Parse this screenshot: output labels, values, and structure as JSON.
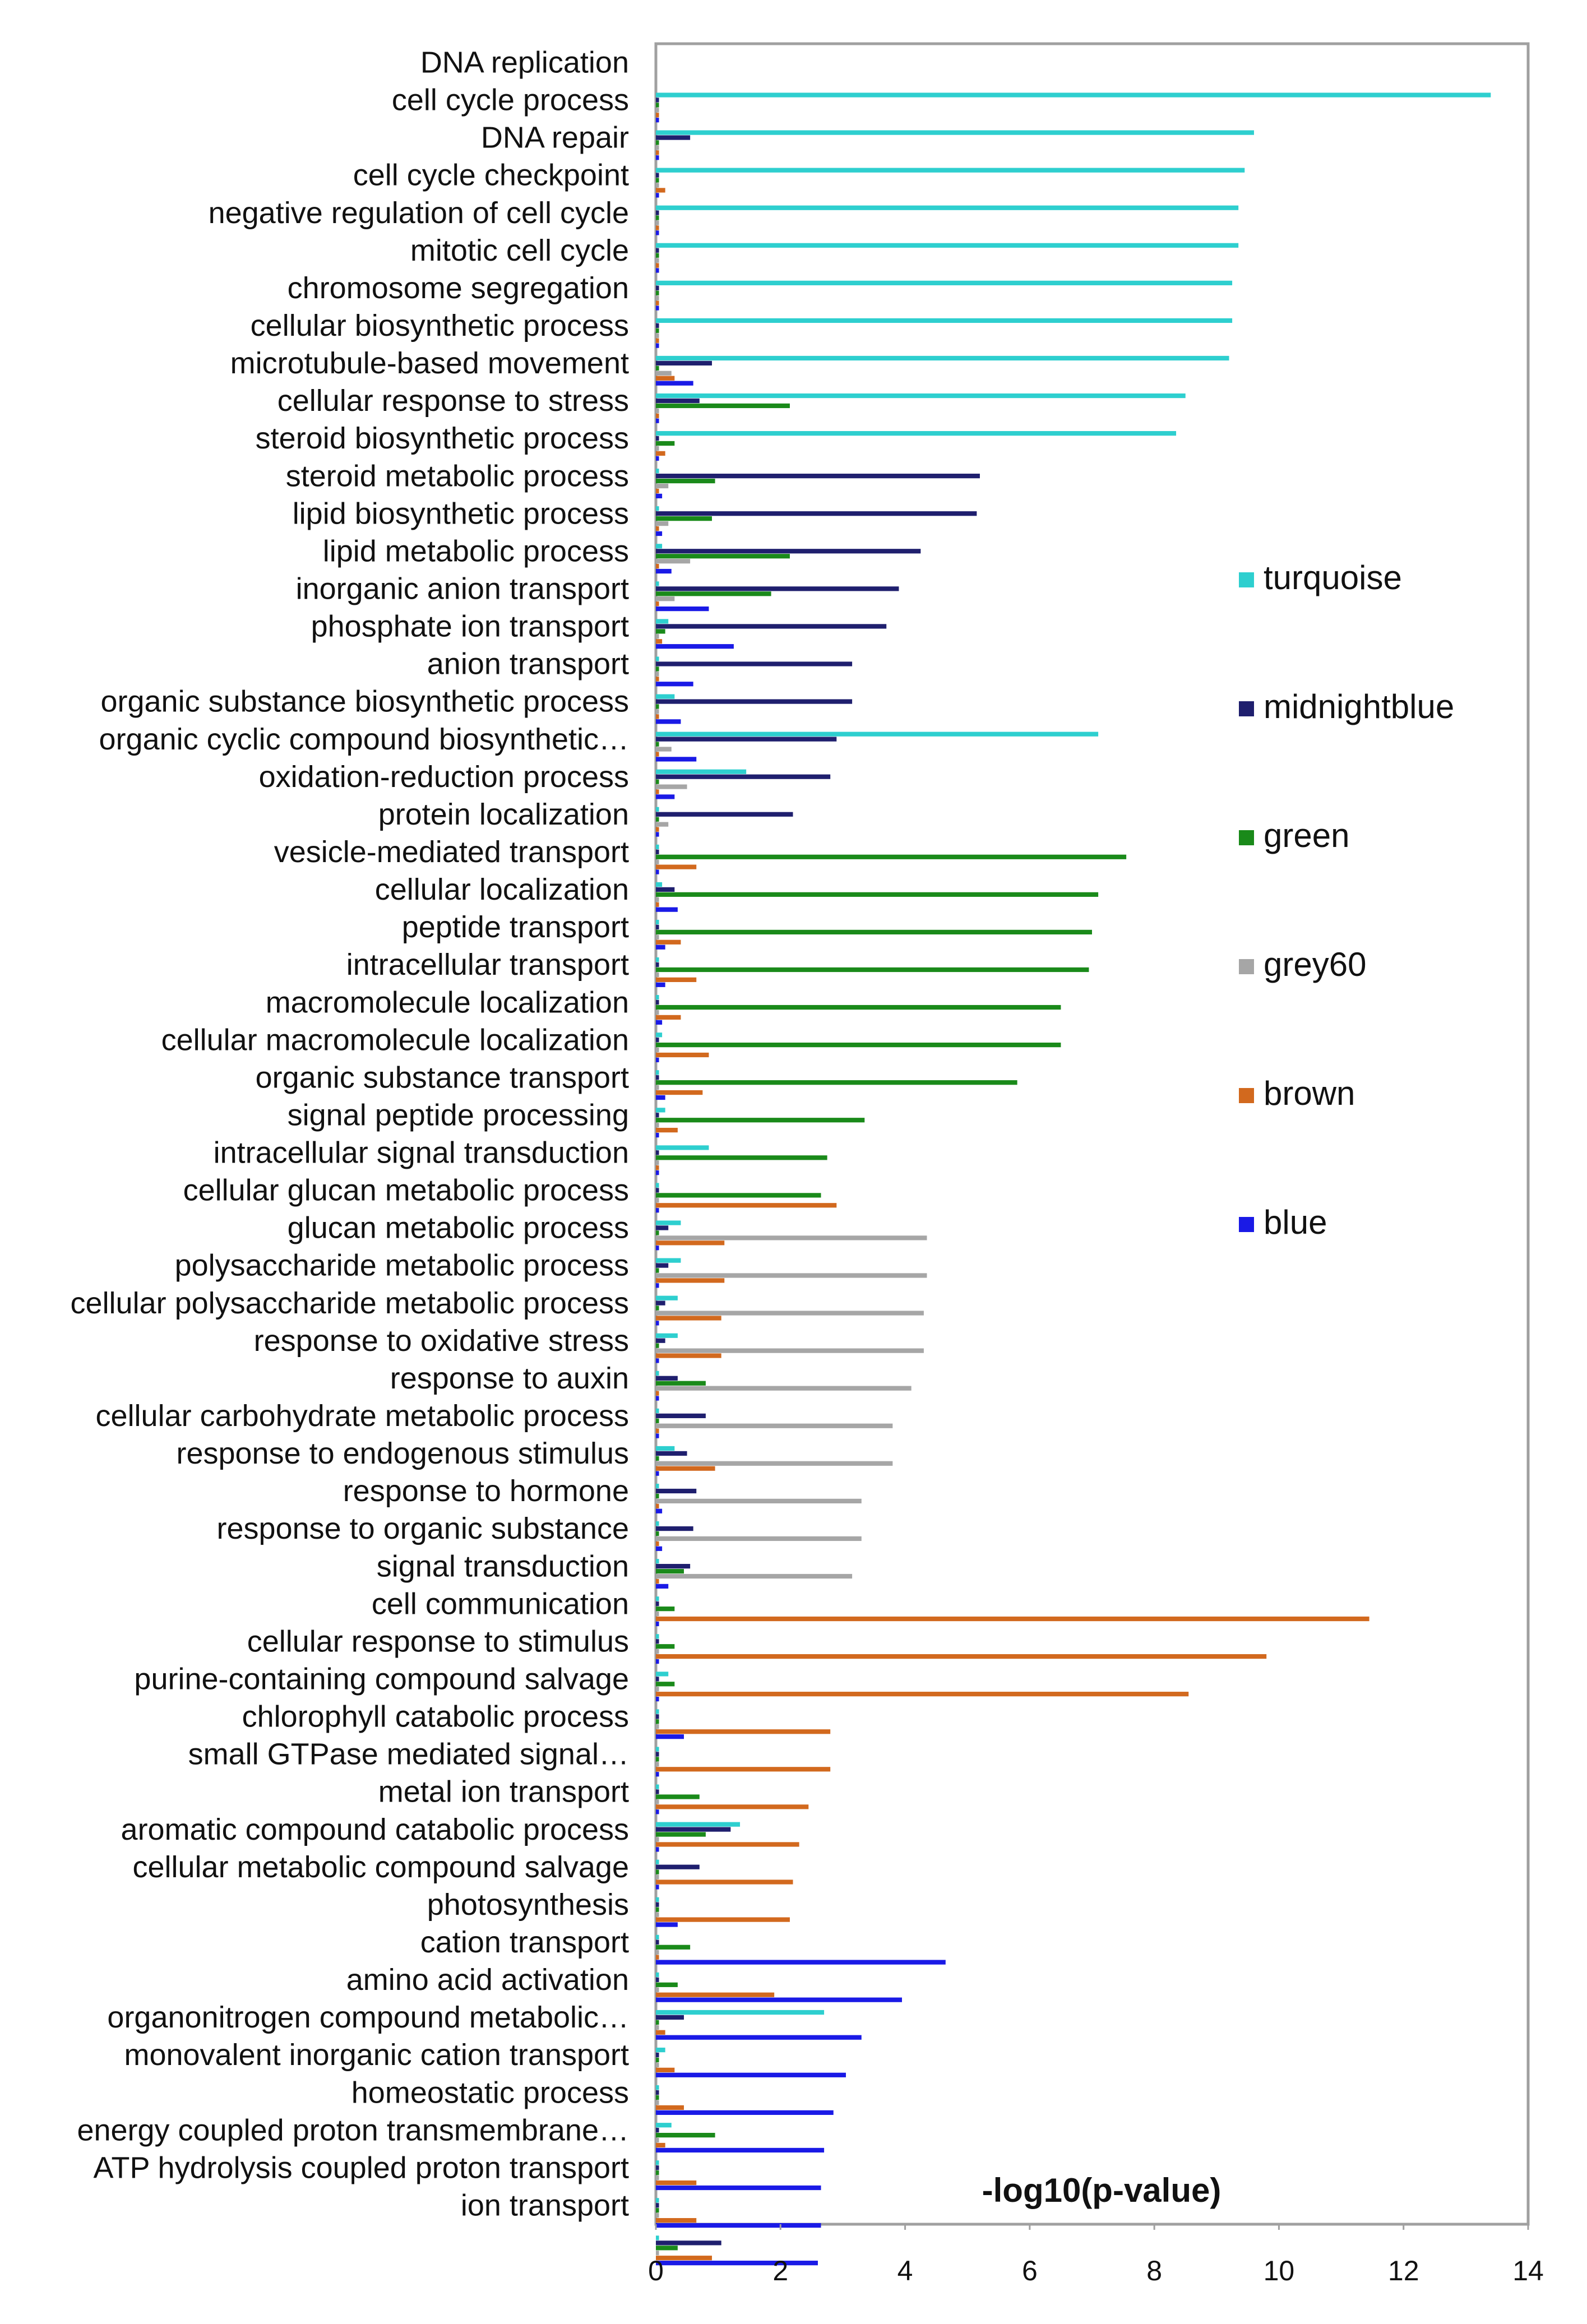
{
  "chart_data": {
    "type": "bar",
    "orientation": "horizontal",
    "xlabel": "-log10(p-value)",
    "xlim": [
      0,
      14
    ],
    "x_ticks": [
      0,
      2,
      4,
      6,
      8,
      10,
      12,
      14
    ],
    "x_tick_labels": [
      "0",
      "2",
      "4",
      "6",
      "8",
      "10",
      "12",
      "14"
    ],
    "grid": false,
    "legend_position": "right",
    "categories": [
      "DNA replication",
      "cell cycle process",
      "DNA repair",
      "cell cycle checkpoint",
      "negative regulation of cell cycle",
      "mitotic cell cycle",
      "chromosome segregation",
      "cellular biosynthetic process",
      "microtubule-based movement",
      "cellular response to stress",
      "steroid biosynthetic process",
      "steroid metabolic process",
      "lipid biosynthetic process",
      "lipid metabolic process",
      "inorganic anion transport",
      "phosphate ion transport",
      "anion transport",
      "organic substance biosynthetic process",
      "organic cyclic compound biosynthetic…",
      "oxidation-reduction process",
      "protein localization",
      "vesicle-mediated transport",
      "cellular localization",
      "peptide transport",
      "intracellular transport",
      "macromolecule localization",
      "cellular macromolecule localization",
      "organic substance transport",
      "signal peptide processing",
      "intracellular signal transduction",
      "cellular glucan metabolic process",
      "glucan metabolic process",
      "polysaccharide metabolic process",
      "cellular polysaccharide metabolic process",
      "response to oxidative stress",
      "response to auxin",
      "cellular carbohydrate metabolic process",
      "response to endogenous stimulus",
      "response to hormone",
      "response to organic substance",
      "signal transduction",
      "cell communication",
      "cellular response to stimulus",
      "purine-containing compound salvage",
      "chlorophyll catabolic process",
      "small GTPase mediated signal…",
      "metal ion transport",
      "aromatic compound catabolic process",
      "cellular metabolic compound salvage",
      "photosynthesis",
      "cation transport",
      "amino acid activation",
      "organonitrogen compound metabolic…",
      "monovalent inorganic cation transport",
      "homeostatic process",
      "energy coupled proton transmembrane…",
      "ATP hydrolysis coupled proton transport",
      "ion transport"
    ],
    "series": [
      {
        "name": "turquoise",
        "color": "#2ecfcf",
        "values": [
          13.4,
          9.6,
          9.45,
          9.35,
          9.35,
          9.25,
          9.25,
          9.2,
          8.5,
          8.35,
          0.05,
          0.05,
          0.1,
          0.05,
          0.2,
          0.05,
          0.3,
          7.1,
          1.45,
          0.05,
          0.05,
          0.1,
          0.05,
          0.05,
          0.05,
          0.1,
          0.05,
          0.15,
          0.85,
          0.05,
          0.4,
          0.4,
          0.35,
          0.35,
          0.05,
          0.05,
          0.3,
          0.05,
          0.05,
          0.05,
          0.05,
          0.05,
          0.2,
          0.05,
          0.05,
          0.05,
          1.35,
          0.05,
          0.05,
          0.05,
          0.05,
          2.7,
          0.15,
          0.05,
          0.25,
          0.05,
          0.05,
          0.05
        ]
      },
      {
        "name": "midnightblue",
        "color": "#1f1f6e",
        "values": [
          0.05,
          0.55,
          0.05,
          0.05,
          0.05,
          0.05,
          0.05,
          0.9,
          0.7,
          0.05,
          5.2,
          5.15,
          4.25,
          3.9,
          3.7,
          3.15,
          3.15,
          2.9,
          2.8,
          2.2,
          0.05,
          0.3,
          0.05,
          0.05,
          0.05,
          0.05,
          0.05,
          0.05,
          0.05,
          0.05,
          0.2,
          0.2,
          0.15,
          0.15,
          0.35,
          0.8,
          0.5,
          0.65,
          0.6,
          0.55,
          0.05,
          0.05,
          0.05,
          0.05,
          0.05,
          0.05,
          1.2,
          0.7,
          0.05,
          0.05,
          0.05,
          0.45,
          0.05,
          0.05,
          0.05,
          0.05,
          0.05,
          1.05
        ]
      },
      {
        "name": "green",
        "color": "#1a8a1a",
        "values": [
          0.05,
          0.05,
          0.05,
          0.05,
          0.05,
          0.05,
          0.05,
          0.05,
          2.15,
          0.3,
          0.95,
          0.9,
          2.15,
          1.85,
          0.15,
          0.05,
          0.05,
          0.05,
          0.05,
          0.05,
          7.55,
          7.1,
          7.0,
          6.95,
          6.5,
          6.5,
          5.8,
          3.35,
          2.75,
          2.65,
          0.05,
          0.05,
          0.05,
          0.05,
          0.8,
          0.05,
          0.05,
          0.05,
          0.05,
          0.45,
          0.3,
          0.3,
          0.3,
          0.05,
          0.05,
          0.7,
          0.8,
          0.05,
          0.05,
          0.55,
          0.35,
          0.05,
          0.05,
          0.05,
          0.95,
          0.05,
          0.05,
          0.35
        ]
      },
      {
        "name": "grey60",
        "color": "#a6a6a6",
        "values": [
          0.05,
          0.05,
          0.05,
          0.05,
          0.05,
          0.05,
          0.05,
          0.25,
          0.05,
          0.05,
          0.2,
          0.2,
          0.55,
          0.3,
          0.05,
          0.05,
          0.05,
          0.25,
          0.5,
          0.2,
          0.05,
          0.05,
          0.05,
          0.05,
          0.05,
          0.05,
          0.05,
          0.05,
          0.05,
          0.05,
          4.35,
          4.35,
          4.3,
          4.3,
          4.1,
          3.8,
          3.8,
          3.3,
          3.3,
          3.15,
          0.05,
          0.05,
          0.05,
          0.05,
          0.05,
          0.05,
          0.05,
          0.05,
          0.05,
          0.05,
          0.05,
          0.05,
          0.05,
          0.05,
          0.05,
          0.05,
          0.05,
          0.05
        ]
      },
      {
        "name": "brown",
        "color": "#d2691e",
        "values": [
          0.05,
          0.05,
          0.15,
          0.05,
          0.05,
          0.05,
          0.05,
          0.3,
          0.05,
          0.15,
          0.05,
          0.05,
          0.05,
          0.05,
          0.1,
          0.05,
          0.05,
          0.05,
          0.05,
          0.05,
          0.65,
          0.05,
          0.4,
          0.65,
          0.4,
          0.85,
          0.75,
          0.35,
          0.05,
          2.9,
          1.1,
          1.1,
          1.05,
          1.05,
          0.05,
          0.05,
          0.95,
          0.05,
          0.05,
          0.05,
          11.45,
          9.8,
          8.55,
          2.8,
          2.8,
          2.45,
          2.3,
          2.2,
          2.15,
          0.05,
          1.9,
          0.15,
          0.3,
          0.45,
          0.15,
          0.65,
          0.65,
          0.9
        ]
      },
      {
        "name": "blue",
        "color": "#1a1ae6",
        "values": [
          0.05,
          0.05,
          0.05,
          0.05,
          0.05,
          0.05,
          0.05,
          0.6,
          0.05,
          0.05,
          0.1,
          0.1,
          0.25,
          0.85,
          1.25,
          0.6,
          0.4,
          0.65,
          0.3,
          0.05,
          0.05,
          0.35,
          0.15,
          0.15,
          0.1,
          0.05,
          0.15,
          0.05,
          0.05,
          0.05,
          0.05,
          0.05,
          0.05,
          0.05,
          0.05,
          0.05,
          0.05,
          0.1,
          0.1,
          0.2,
          0.05,
          0.05,
          0.05,
          0.45,
          0.05,
          0.05,
          0.05,
          0.05,
          0.35,
          4.65,
          3.95,
          3.3,
          3.05,
          2.85,
          2.7,
          2.65,
          2.65,
          2.6
        ]
      }
    ]
  }
}
